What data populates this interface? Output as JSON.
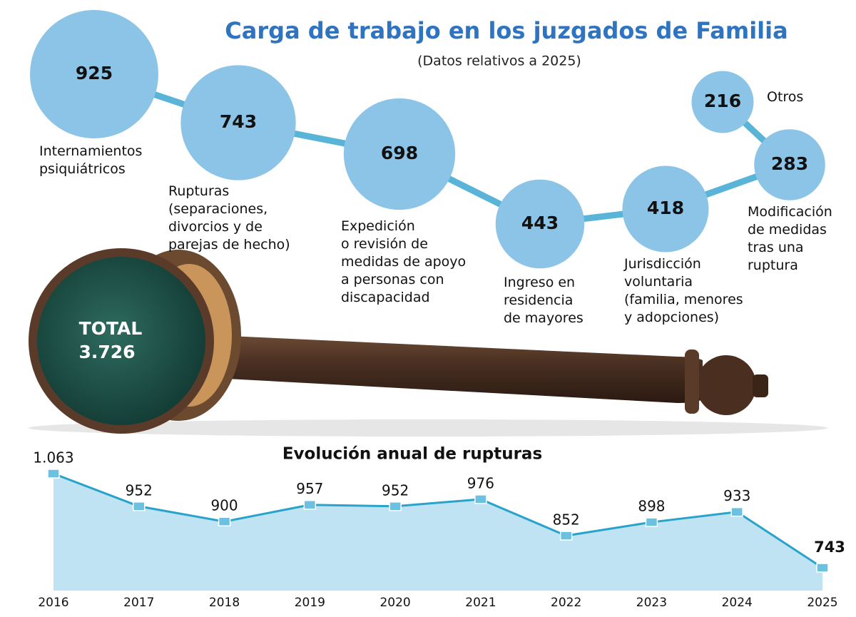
{
  "chart_data": [
    {
      "type": "bubble",
      "title": "Carga de trabajo en los juzgados de Familia",
      "subtitle": "(Datos relativos a 2025)",
      "categories": [
        "Internamientos\npsiquiátricos",
        "Rupturas\n(separaciones,\ndivorcios y de\nparejas de hecho)",
        "Expedición\no revisión de\nmedidas de apoyo\na personas con\ndiscapacidad",
        "Ingreso en\nresidencia\nde mayores",
        "Jurisdicción\nvoluntaria\n(familia, menores\ny adopciones)",
        "Modificación\nde medidas\ntras una\nruptura",
        "Otros"
      ],
      "values": [
        925,
        743,
        698,
        443,
        418,
        283,
        216
      ],
      "color": "#8cc4e8",
      "total_title": "TOTAL",
      "total": 3726,
      "total_label": "3.726"
    },
    {
      "type": "area",
      "title": "Evolución anual de rupturas",
      "x": [
        2016,
        2017,
        2018,
        2019,
        2020,
        2021,
        2022,
        2023,
        2024,
        2025
      ],
      "values": [
        1063,
        952,
        900,
        957,
        952,
        976,
        852,
        898,
        933,
        743
      ],
      "value_labels": [
        "1.063",
        "952",
        "900",
        "957",
        "952",
        "976",
        "852",
        "898",
        "933",
        "743"
      ],
      "color": "#2aa3cc",
      "fill": "#bfe3f2"
    }
  ]
}
